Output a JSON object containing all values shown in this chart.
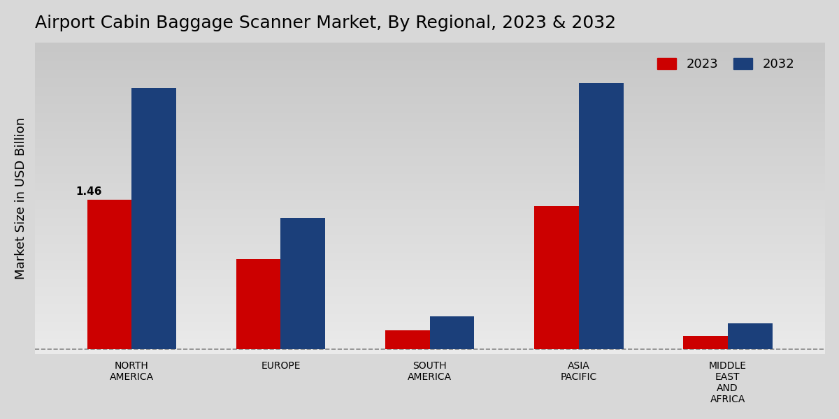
{
  "title": "Airport Cabin Baggage Scanner Market, By Regional, 2023 & 2032",
  "ylabel": "Market Size in USD Billion",
  "categories": [
    "NORTH\nAMERICA",
    "EUROPE",
    "SOUTH\nAMERICA",
    "ASIA\nPACIFIC",
    "MIDDLE\nEAST\nAND\nAFRICA"
  ],
  "values_2023": [
    1.46,
    0.88,
    0.18,
    1.4,
    0.13
  ],
  "values_2032": [
    2.55,
    1.28,
    0.32,
    2.6,
    0.25
  ],
  "color_2023": "#cc0000",
  "color_2032": "#1b3f7a",
  "annotation_text": "1.46",
  "annotation_idx": 0,
  "bar_width": 0.3,
  "bg_color_top": "#d0d0d0",
  "bg_color_bottom": "#e8e8e8",
  "ylim": [
    -0.05,
    3.0
  ],
  "legend_labels": [
    "2023",
    "2032"
  ],
  "title_fontsize": 18,
  "axis_label_fontsize": 13,
  "tick_fontsize": 10,
  "legend_fontsize": 13
}
